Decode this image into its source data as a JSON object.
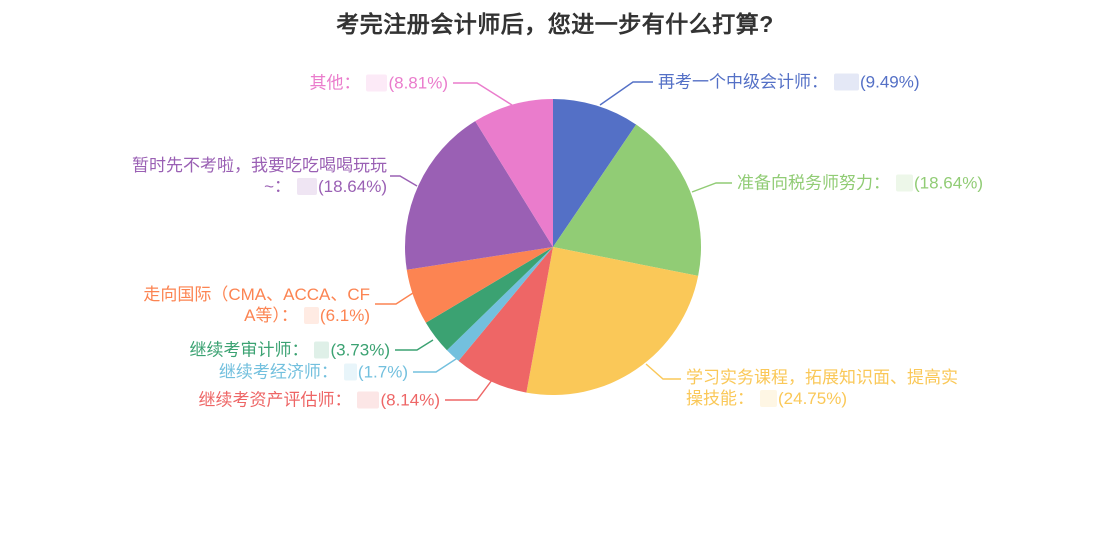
{
  "page": {
    "background": "#ffffff"
  },
  "chart_data": {
    "type": "pie",
    "title": "考完注册会计师后，您进一步有什么打算?",
    "title_color": "#333333",
    "legend": "none",
    "start_angle_deg": 0,
    "clockwise": true,
    "value_note": "numeric vote counts are censored with light tinted boxes; only percentages visible",
    "items": [
      {
        "name": "再考一个中级会计师",
        "label": "再考一个中级会计师：",
        "value_pct": 9.49,
        "pct_label": "(9.49%)",
        "color": "#5470c6",
        "value_censored": true
      },
      {
        "name": "准备向税务师努力",
        "label": "准备向税务师努力：",
        "value_pct": 18.64,
        "pct_label": "(18.64%)",
        "color": "#91cc75",
        "value_censored": true
      },
      {
        "name": "学习实务课程，拓展知识面、提高实操技能",
        "label": "学习实务课程，拓展知识面、提高实操技能：",
        "value_pct": 24.75,
        "pct_label": "(24.75%)",
        "color": "#fac858",
        "value_censored": true
      },
      {
        "name": "继续考资产评估师",
        "label": "继续考资产评估师：",
        "value_pct": 8.14,
        "pct_label": "(8.14%)",
        "color": "#ee6666",
        "value_censored": true
      },
      {
        "name": "继续考经济师",
        "label": "继续考经济师：",
        "value_pct": 1.7,
        "pct_label": "(1.7%)",
        "color": "#73c0de",
        "value_censored": true
      },
      {
        "name": "继续考审计师",
        "label": "继续考审计师：",
        "value_pct": 3.73,
        "pct_label": "(3.73%)",
        "color": "#3ba272",
        "value_censored": true
      },
      {
        "name": "走向国际（CMA、ACCA、CFA等）",
        "label": "走向国际（CMA、ACCA、CFA等）：",
        "value_pct": 6.1,
        "pct_label": "(6.1%)",
        "color": "#fc8452",
        "value_censored": true
      },
      {
        "name": "暂时先不考啦，我要吃吃喝喝玩玩~",
        "label": "暂时先不考啦，我要吃吃喝喝玩玩~：",
        "value_pct": 18.64,
        "pct_label": "(18.64%)",
        "color": "#9a60b4",
        "value_censored": true
      },
      {
        "name": "其他",
        "label": "其他：",
        "value_pct": 8.81,
        "pct_label": "(8.81%)",
        "color": "#ea7ccc",
        "value_censored": true
      }
    ]
  }
}
